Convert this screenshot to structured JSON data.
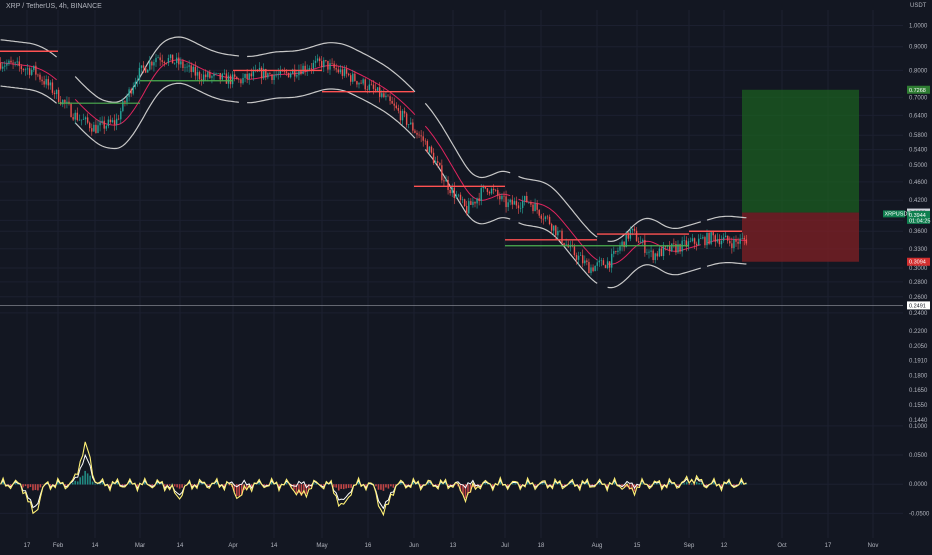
{
  "header": {
    "title": "XRP / TetherUS, 4h, BINANCE",
    "currency": "USDT"
  },
  "colors": {
    "background": "#131722",
    "grid": "#1c2030",
    "band": "#c8c8c8",
    "basis": "#e0245e",
    "level_red": "#ff5252",
    "level_green": "#4caf50",
    "up": "#26a69a",
    "down": "#ef5350",
    "osc_fast": "#fff176",
    "osc_slow": "#ffffff",
    "target_zone": "#1b5e20",
    "stop_zone": "#7b1f24",
    "tag_green": "#2e7d32",
    "tag_red": "#d32f2f",
    "tag_last": "#0f7f4f",
    "tag_neutral": "#ffffff"
  },
  "chart_data": [
    {
      "type": "candlestick",
      "title": "XRP / TetherUS, 4h, BINANCE",
      "y_unit": "USDT",
      "y_scale": "log",
      "ylim": [
        0.234,
        1.08
      ],
      "y_ticks": [
        "1.0000",
        "0.9000",
        "0.8000",
        "0.7000",
        "0.6400",
        "0.5800",
        "0.5400",
        "0.5000",
        "0.4600",
        "0.4200",
        "0.3800",
        "0.3600",
        "0.3300",
        "0.3000",
        "0.2800",
        "0.2600",
        "0.2400"
      ],
      "x_ticks": [
        "17",
        "Feb",
        "14",
        "Mar",
        "14",
        "Apr",
        "14",
        "May",
        "16",
        "Jun",
        "13",
        "Jul",
        "18",
        "Aug",
        "15",
        "Sep",
        "12",
        "Oct",
        "17",
        "Nov"
      ],
      "close_path": [
        [
          -1,
          0.84
        ],
        [
          1,
          0.8
        ],
        [
          2,
          0.72
        ],
        [
          3,
          0.64
        ],
        [
          4,
          0.6
        ],
        [
          5,
          0.62
        ],
        [
          6,
          0.78
        ],
        [
          7,
          0.86
        ],
        [
          8,
          0.83
        ],
        [
          9,
          0.78
        ],
        [
          10,
          0.77
        ],
        [
          11,
          0.76
        ],
        [
          12,
          0.79
        ],
        [
          13,
          0.78
        ],
        [
          14,
          0.81
        ],
        [
          15,
          0.83
        ],
        [
          16,
          0.79
        ],
        [
          17,
          0.75
        ],
        [
          18,
          0.7
        ],
        [
          19,
          0.63
        ],
        [
          20,
          0.56
        ],
        [
          21,
          0.46
        ],
        [
          22,
          0.4
        ],
        [
          23,
          0.45
        ],
        [
          24,
          0.41
        ],
        [
          25,
          0.42
        ],
        [
          26,
          0.38
        ],
        [
          27,
          0.33
        ],
        [
          28,
          0.3
        ],
        [
          29,
          0.31
        ],
        [
          30,
          0.36
        ],
        [
          31,
          0.32
        ],
        [
          32,
          0.33
        ],
        [
          33,
          0.34
        ],
        [
          34,
          0.35
        ],
        [
          35,
          0.34
        ],
        [
          36,
          0.35
        ],
        [
          37,
          0.38
        ],
        [
          38,
          0.37
        ],
        [
          39,
          0.37
        ],
        [
          40,
          0.34
        ],
        [
          41,
          0.33
        ],
        [
          42,
          0.35
        ],
        [
          43,
          0.3944
        ]
      ],
      "annotations": {
        "last_price": "0.3944",
        "countdown": "01:04:25",
        "symbol_tag": "XRPUSDT",
        "target_price": "0.7268",
        "entry_price": "0.3950",
        "stop_price": "0.3094",
        "hline_price": "0.2491"
      },
      "levels": {
        "red": [
          [
            0,
            0.88,
            5
          ],
          [
            7,
            0.8,
            11
          ],
          [
            14,
            0.72,
            18
          ],
          [
            18,
            0.45,
            22
          ],
          [
            24,
            0.35,
            27
          ],
          [
            30,
            0.355,
            32
          ],
          [
            33,
            0.36,
            34
          ]
        ],
        "green": [
          [
            2,
            0.68,
            6
          ],
          [
            9,
            0.76,
            10
          ],
          [
            27,
            0.34,
            33
          ]
        ]
      },
      "trade_box": {
        "x_start": 33,
        "x_end": 38,
        "target": 0.7268,
        "entry": 0.395,
        "stop": 0.3094
      }
    },
    {
      "type": "line",
      "title": "",
      "ylim": [
        -0.075,
        0.11
      ],
      "y_ticks": [
        "0.1000",
        "0.0500",
        "0.0000",
        "-0.0500"
      ],
      "series_fast_events": [
        [
          1,
          -0.05
        ],
        [
          3.5,
          0.065
        ],
        [
          8,
          -0.02
        ],
        [
          11,
          -0.02
        ],
        [
          14,
          -0.02
        ],
        [
          16,
          -0.04
        ],
        [
          18,
          -0.05
        ],
        [
          22,
          -0.02
        ],
        [
          30,
          -0.01
        ],
        [
          33,
          0.01
        ]
      ],
      "series_slow_events": [
        [
          1,
          -0.04
        ],
        [
          3.5,
          0.045
        ],
        [
          8,
          -0.015
        ],
        [
          16,
          -0.03
        ],
        [
          18,
          -0.04
        ],
        [
          33,
          0.008
        ]
      ]
    }
  ]
}
